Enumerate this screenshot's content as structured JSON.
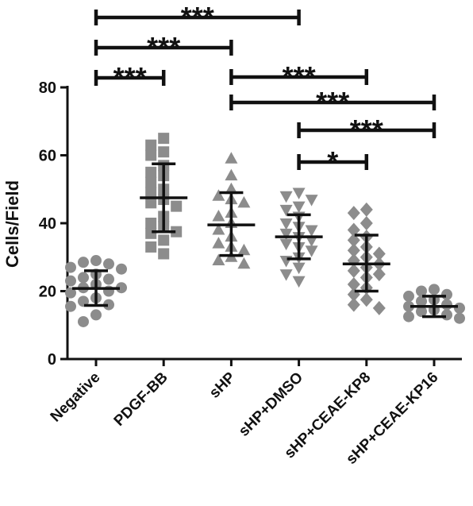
{
  "chart_data": {
    "type": "scatter",
    "title": "",
    "xlabel": "",
    "ylabel": "Cells/Field",
    "ylim": [
      0,
      80
    ],
    "yticks": [
      0,
      20,
      40,
      60,
      80
    ],
    "grid": false,
    "legend": "none",
    "categories": [
      "Negative",
      "PDGF-BB",
      "sHP",
      "sHP+DMSO",
      "sHP+CEAE-KP8",
      "sHP+CEAE-KP16"
    ],
    "colors": {
      "points": "#8c8c8c",
      "bars": "#111111",
      "axis": "#111111"
    },
    "markers": [
      "circle",
      "square",
      "triangle-up",
      "triangle-down",
      "diamond",
      "circle"
    ],
    "series": [
      {
        "category": "Negative",
        "mean": 20.8,
        "sd_low": 15.8,
        "sd_high": 26.0,
        "points": [
          29,
          28.5,
          28,
          27,
          26.5,
          25,
          24,
          23.5,
          23,
          22,
          21,
          21,
          20,
          19.5,
          18,
          17,
          16,
          15.5,
          13,
          11
        ]
      },
      {
        "category": "PDGF-BB",
        "mean": 47.5,
        "sd_low": 37.5,
        "sd_high": 57.5,
        "points": [
          65,
          63,
          61,
          60,
          57,
          55,
          54,
          52,
          50,
          49,
          47,
          46,
          45,
          42,
          40,
          39,
          37.5,
          37,
          35,
          33,
          31
        ]
      },
      {
        "category": "sHP",
        "mean": 39.5,
        "sd_low": 30.5,
        "sd_high": 49.0,
        "points": [
          59,
          54,
          50,
          48,
          47,
          46,
          43,
          42,
          40,
          38,
          36,
          34,
          33,
          32,
          30,
          29,
          28
        ]
      },
      {
        "category": "sHP+DMSO",
        "mean": 36.0,
        "sd_low": 29.5,
        "sd_high": 42.5,
        "points": [
          49,
          48,
          47,
          45,
          44,
          42,
          40,
          39,
          38,
          37,
          36,
          35,
          34,
          33,
          32,
          30,
          29,
          27,
          25,
          23
        ]
      },
      {
        "category": "sHP+CEAE-KP8",
        "mean": 28.0,
        "sd_low": 20.0,
        "sd_high": 36.5,
        "points": [
          44,
          43,
          40,
          38,
          36,
          35,
          33,
          32,
          31,
          30,
          29,
          28,
          27,
          26,
          25,
          24,
          22,
          21,
          19,
          17.5,
          16,
          15
        ]
      },
      {
        "category": "sHP+CEAE-KP16",
        "mean": 15.5,
        "sd_low": 12.5,
        "sd_high": 18.5,
        "points": [
          20.5,
          20,
          19,
          18.5,
          17.5,
          17,
          16,
          15.5,
          15,
          14.5,
          14,
          13,
          12.5,
          12
        ]
      }
    ],
    "significance": [
      {
        "from": "Negative",
        "to": "PDGF-BB",
        "label": "***"
      },
      {
        "from": "Negative",
        "to": "sHP",
        "label": "***"
      },
      {
        "from": "Negative",
        "to": "sHP+DMSO",
        "label": "***"
      },
      {
        "from": "sHP",
        "to": "sHP+CEAE-KP8",
        "label": "***"
      },
      {
        "from": "sHP",
        "to": "sHP+CEAE-KP16",
        "label": "***"
      },
      {
        "from": "sHP+DMSO",
        "to": "sHP+CEAE-KP8",
        "label": "*"
      },
      {
        "from": "sHP+DMSO",
        "to": "sHP+CEAE-KP16",
        "label": "***"
      }
    ]
  }
}
